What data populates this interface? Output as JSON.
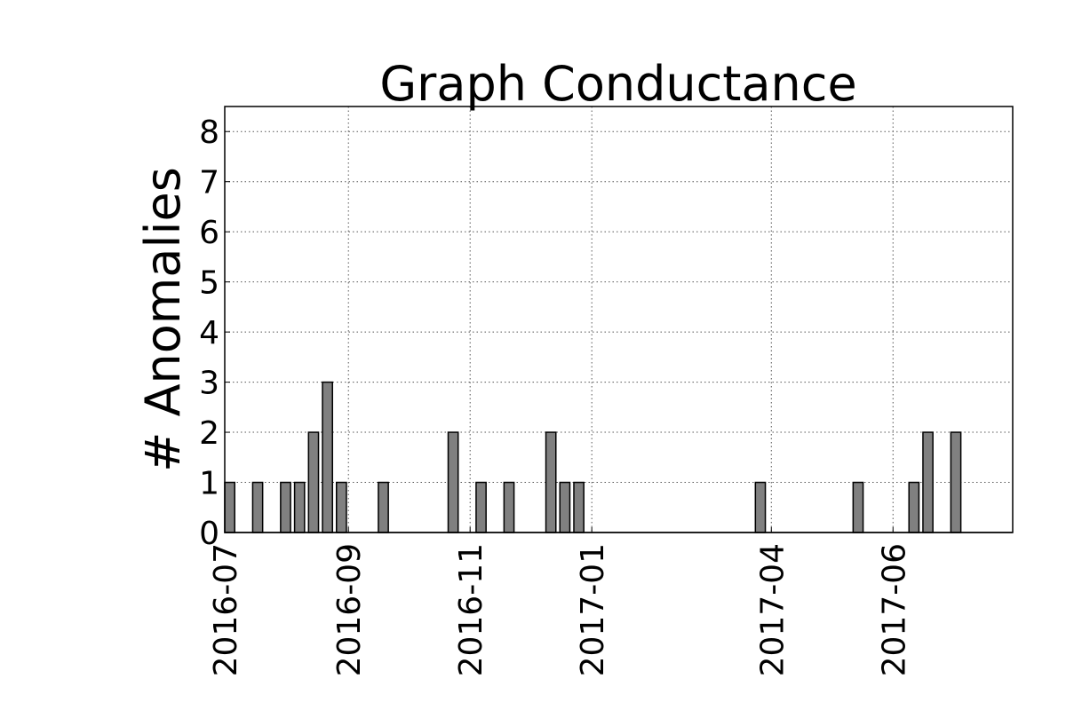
{
  "chart_data": {
    "type": "bar",
    "title": "Graph Conductance",
    "ylabel": "# Anomalies",
    "xlabel": "",
    "ylim": [
      0,
      8.5
    ],
    "yticks": [
      0,
      1,
      2,
      3,
      4,
      5,
      6,
      7,
      8
    ],
    "xlim": [
      "2016-07-01",
      "2017-07-31"
    ],
    "xticks": [
      "2016-07",
      "2016-09",
      "2016-11",
      "2017-01",
      "2017-04",
      "2017-06"
    ],
    "grid": true,
    "bar_color": "#808080",
    "series": [
      {
        "points": [
          {
            "x": "2016-07-01",
            "y": 1
          },
          {
            "x": "2016-07-15",
            "y": 1
          },
          {
            "x": "2016-07-29",
            "y": 1
          },
          {
            "x": "2016-08-05",
            "y": 1
          },
          {
            "x": "2016-08-12",
            "y": 2
          },
          {
            "x": "2016-08-19",
            "y": 3
          },
          {
            "x": "2016-08-26",
            "y": 1
          },
          {
            "x": "2016-09-16",
            "y": 1
          },
          {
            "x": "2016-10-21",
            "y": 2
          },
          {
            "x": "2016-11-04",
            "y": 1
          },
          {
            "x": "2016-11-18",
            "y": 1
          },
          {
            "x": "2016-12-09",
            "y": 2
          },
          {
            "x": "2016-12-16",
            "y": 1
          },
          {
            "x": "2016-12-23",
            "y": 1
          },
          {
            "x": "2017-03-24",
            "y": 1
          },
          {
            "x": "2017-05-12",
            "y": 1
          },
          {
            "x": "2017-06-09",
            "y": 1
          },
          {
            "x": "2017-06-16",
            "y": 2
          },
          {
            "x": "2017-06-30",
            "y": 2
          }
        ]
      }
    ]
  }
}
